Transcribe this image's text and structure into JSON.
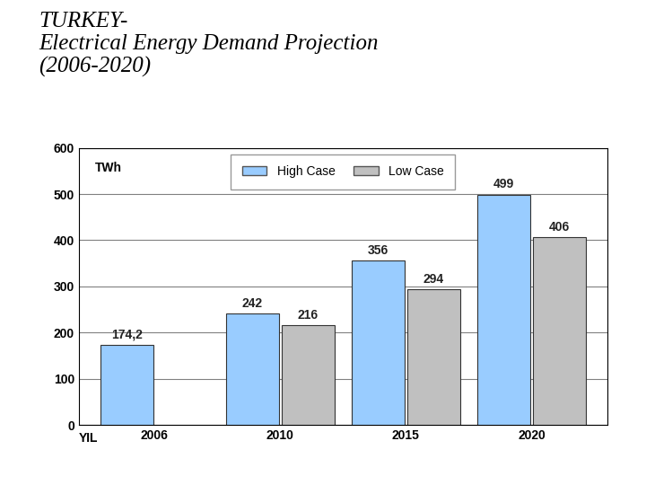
{
  "chart_data": {
    "type": "bar",
    "title": "TURKEY-\nElectrical Energy Demand Projection\n(2006-2020)",
    "ylabel": "TWh",
    "xlabel": "YIL",
    "categories": [
      "2006",
      "2010",
      "2015",
      "2020"
    ],
    "series": [
      {
        "name": "High Case",
        "color": "#99ccff",
        "values": [
          174.2,
          242,
          356,
          499
        ],
        "value_labels": [
          "174,2",
          "242",
          "356",
          "499"
        ]
      },
      {
        "name": "Low Case",
        "color": "#c0c0c0",
        "values": [
          null,
          216,
          294,
          406
        ],
        "value_labels": [
          null,
          "216",
          "294",
          "406"
        ]
      }
    ],
    "ylim": [
      0,
      600
    ],
    "yticks": [
      0,
      100,
      200,
      300,
      400,
      500,
      600
    ],
    "grid": true,
    "legend": "upper center",
    "data_labels": true
  }
}
